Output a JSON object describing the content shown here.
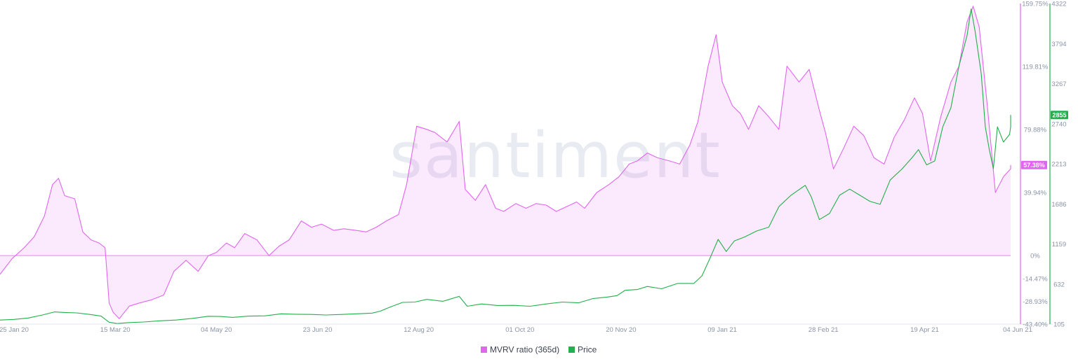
{
  "watermark": "santiment",
  "chart_data": {
    "type": "area",
    "x_dates": [
      "2020-01-25",
      "2020-03-15",
      "2020-05-04",
      "2020-06-23",
      "2020-08-12",
      "2020-10-01",
      "2020-11-20",
      "2021-01-09",
      "2021-02-28",
      "2021-04-19",
      "2021-06-04"
    ],
    "x_tick_labels": [
      "25 Jan 20",
      "15 Mar 20",
      "04 May 20",
      "23 Jun 20",
      "12 Aug 20",
      "01 Oct 20",
      "20 Nov 20",
      "09 Jan 21",
      "28 Feb 21",
      "19 Apr 21",
      "04 Jun 21"
    ],
    "y_left": {
      "ticks": [
        159.75,
        119.81,
        79.88,
        39.94,
        0,
        -14.47,
        -28.93,
        -43.4
      ],
      "tick_labels": [
        "159.75%",
        "119.81%",
        "79.88%",
        "39.94%",
        "0%",
        "-14.47%",
        "-28.93%",
        "-43.40%"
      ],
      "range": [
        -43.4,
        159.75
      ]
    },
    "y_right": {
      "ticks": [
        4322,
        3794,
        3267,
        2740,
        2213,
        1686,
        1159,
        632,
        105
      ],
      "tick_labels": [
        "4322",
        "3794",
        "3267",
        "2740",
        "2213",
        "1686",
        "1159",
        "632",
        "105"
      ],
      "range": [
        105,
        4322
      ]
    },
    "series": [
      {
        "name": "MVRV ratio (365d)",
        "axis": "left",
        "color": "#e066ee",
        "current_label": "57.38%",
        "points": [
          [
            "2020-01-18",
            -12
          ],
          [
            "2020-01-24",
            -2
          ],
          [
            "2020-01-30",
            5
          ],
          [
            "2020-02-04",
            12
          ],
          [
            "2020-02-09",
            25
          ],
          [
            "2020-02-13",
            45
          ],
          [
            "2020-02-16",
            49
          ],
          [
            "2020-02-19",
            38
          ],
          [
            "2020-02-24",
            36
          ],
          [
            "2020-02-28",
            15
          ],
          [
            "2020-03-03",
            10
          ],
          [
            "2020-03-07",
            8
          ],
          [
            "2020-03-10",
            5
          ],
          [
            "2020-03-12",
            -30
          ],
          [
            "2020-03-14",
            -36
          ],
          [
            "2020-03-17",
            -40
          ],
          [
            "2020-03-22",
            -32
          ],
          [
            "2020-03-27",
            -30
          ],
          [
            "2020-04-02",
            -28
          ],
          [
            "2020-04-08",
            -25
          ],
          [
            "2020-04-13",
            -10
          ],
          [
            "2020-04-19",
            -3
          ],
          [
            "2020-04-25",
            -10
          ],
          [
            "2020-04-30",
            0
          ],
          [
            "2020-05-04",
            2
          ],
          [
            "2020-05-09",
            8
          ],
          [
            "2020-05-13",
            5
          ],
          [
            "2020-05-18",
            14
          ],
          [
            "2020-05-24",
            10
          ],
          [
            "2020-05-30",
            0
          ],
          [
            "2020-06-04",
            6
          ],
          [
            "2020-06-09",
            10
          ],
          [
            "2020-06-15",
            22
          ],
          [
            "2020-06-20",
            18
          ],
          [
            "2020-06-25",
            20
          ],
          [
            "2020-07-01",
            16
          ],
          [
            "2020-07-06",
            17
          ],
          [
            "2020-07-12",
            16
          ],
          [
            "2020-07-17",
            15
          ],
          [
            "2020-07-22",
            18
          ],
          [
            "2020-07-27",
            22
          ],
          [
            "2020-08-02",
            26
          ],
          [
            "2020-08-06",
            45
          ],
          [
            "2020-08-11",
            82
          ],
          [
            "2020-08-16",
            80
          ],
          [
            "2020-08-20",
            78
          ],
          [
            "2020-08-26",
            72
          ],
          [
            "2020-09-01",
            85
          ],
          [
            "2020-09-04",
            42
          ],
          [
            "2020-09-09",
            35
          ],
          [
            "2020-09-14",
            45
          ],
          [
            "2020-09-19",
            30
          ],
          [
            "2020-09-23",
            28
          ],
          [
            "2020-09-29",
            33
          ],
          [
            "2020-10-04",
            30
          ],
          [
            "2020-10-09",
            33
          ],
          [
            "2020-10-14",
            32
          ],
          [
            "2020-10-19",
            28
          ],
          [
            "2020-10-24",
            31
          ],
          [
            "2020-10-29",
            34
          ],
          [
            "2020-11-02",
            30
          ],
          [
            "2020-11-08",
            40
          ],
          [
            "2020-11-14",
            45
          ],
          [
            "2020-11-19",
            50
          ],
          [
            "2020-11-24",
            58
          ],
          [
            "2020-11-28",
            60
          ],
          [
            "2020-12-03",
            65
          ],
          [
            "2020-12-08",
            62
          ],
          [
            "2020-12-14",
            60
          ],
          [
            "2020-12-19",
            58
          ],
          [
            "2020-12-24",
            70
          ],
          [
            "2020-12-28",
            85
          ],
          [
            "2021-01-02",
            120
          ],
          [
            "2021-01-06",
            140
          ],
          [
            "2021-01-09",
            110
          ],
          [
            "2021-01-14",
            95
          ],
          [
            "2021-01-18",
            90
          ],
          [
            "2021-01-22",
            80
          ],
          [
            "2021-01-27",
            95
          ],
          [
            "2021-02-01",
            88
          ],
          [
            "2021-02-06",
            80
          ],
          [
            "2021-02-10",
            120
          ],
          [
            "2021-02-16",
            110
          ],
          [
            "2021-02-21",
            118
          ],
          [
            "2021-02-26",
            92
          ],
          [
            "2021-03-01",
            78
          ],
          [
            "2021-03-05",
            55
          ],
          [
            "2021-03-10",
            68
          ],
          [
            "2021-03-15",
            82
          ],
          [
            "2021-03-20",
            76
          ],
          [
            "2021-03-25",
            62
          ],
          [
            "2021-03-30",
            58
          ],
          [
            "2021-04-04",
            75
          ],
          [
            "2021-04-09",
            86
          ],
          [
            "2021-04-14",
            100
          ],
          [
            "2021-04-18",
            90
          ],
          [
            "2021-04-22",
            60
          ],
          [
            "2021-04-27",
            88
          ],
          [
            "2021-05-02",
            110
          ],
          [
            "2021-05-06",
            120
          ],
          [
            "2021-05-10",
            148
          ],
          [
            "2021-05-13",
            158
          ],
          [
            "2021-05-16",
            145
          ],
          [
            "2021-05-20",
            95
          ],
          [
            "2021-05-24",
            40
          ],
          [
            "2021-05-28",
            50
          ],
          [
            "2021-06-01",
            55
          ],
          [
            "2021-06-04",
            57.38
          ]
        ]
      },
      {
        "name": "Price",
        "axis": "right",
        "color": "#21b04b",
        "current_label": "2855",
        "points": [
          [
            "2020-01-18",
            158
          ],
          [
            "2020-01-25",
            167
          ],
          [
            "2020-02-01",
            185
          ],
          [
            "2020-02-08",
            225
          ],
          [
            "2020-02-14",
            265
          ],
          [
            "2020-02-19",
            258
          ],
          [
            "2020-02-25",
            252
          ],
          [
            "2020-03-03",
            230
          ],
          [
            "2020-03-08",
            210
          ],
          [
            "2020-03-12",
            130
          ],
          [
            "2020-03-16",
            112
          ],
          [
            "2020-03-22",
            125
          ],
          [
            "2020-03-29",
            133
          ],
          [
            "2020-04-06",
            148
          ],
          [
            "2020-04-14",
            158
          ],
          [
            "2020-04-22",
            180
          ],
          [
            "2020-04-30",
            208
          ],
          [
            "2020-05-06",
            205
          ],
          [
            "2020-05-12",
            193
          ],
          [
            "2020-05-20",
            210
          ],
          [
            "2020-05-28",
            214
          ],
          [
            "2020-06-05",
            240
          ],
          [
            "2020-06-12",
            235
          ],
          [
            "2020-06-20",
            232
          ],
          [
            "2020-06-27",
            225
          ],
          [
            "2020-07-05",
            232
          ],
          [
            "2020-07-12",
            240
          ],
          [
            "2020-07-20",
            250
          ],
          [
            "2020-07-24",
            275
          ],
          [
            "2020-07-28",
            320
          ],
          [
            "2020-08-04",
            390
          ],
          [
            "2020-08-10",
            395
          ],
          [
            "2020-08-16",
            430
          ],
          [
            "2020-08-24",
            405
          ],
          [
            "2020-09-01",
            470
          ],
          [
            "2020-09-05",
            340
          ],
          [
            "2020-09-12",
            370
          ],
          [
            "2020-09-20",
            350
          ],
          [
            "2020-09-28",
            352
          ],
          [
            "2020-10-06",
            340
          ],
          [
            "2020-10-14",
            370
          ],
          [
            "2020-10-22",
            395
          ],
          [
            "2020-10-30",
            385
          ],
          [
            "2020-11-06",
            440
          ],
          [
            "2020-11-13",
            460
          ],
          [
            "2020-11-18",
            480
          ],
          [
            "2020-11-22",
            550
          ],
          [
            "2020-11-28",
            560
          ],
          [
            "2020-12-03",
            600
          ],
          [
            "2020-12-10",
            570
          ],
          [
            "2020-12-18",
            640
          ],
          [
            "2020-12-26",
            640
          ],
          [
            "2020-12-30",
            740
          ],
          [
            "2021-01-03",
            975
          ],
          [
            "2021-01-07",
            1220
          ],
          [
            "2021-01-11",
            1060
          ],
          [
            "2021-01-15",
            1200
          ],
          [
            "2021-01-20",
            1250
          ],
          [
            "2021-01-26",
            1330
          ],
          [
            "2021-02-01",
            1380
          ],
          [
            "2021-02-06",
            1650
          ],
          [
            "2021-02-12",
            1800
          ],
          [
            "2021-02-19",
            1930
          ],
          [
            "2021-02-22",
            1780
          ],
          [
            "2021-02-26",
            1480
          ],
          [
            "2021-03-03",
            1560
          ],
          [
            "2021-03-08",
            1800
          ],
          [
            "2021-03-13",
            1880
          ],
          [
            "2021-03-18",
            1800
          ],
          [
            "2021-03-23",
            1720
          ],
          [
            "2021-03-28",
            1680
          ],
          [
            "2021-04-02",
            2000
          ],
          [
            "2021-04-08",
            2150
          ],
          [
            "2021-04-13",
            2300
          ],
          [
            "2021-04-16",
            2400
          ],
          [
            "2021-04-20",
            2200
          ],
          [
            "2021-04-24",
            2250
          ],
          [
            "2021-04-28",
            2700
          ],
          [
            "2021-05-02",
            2950
          ],
          [
            "2021-05-06",
            3500
          ],
          [
            "2021-05-10",
            3900
          ],
          [
            "2021-05-12",
            4250
          ],
          [
            "2021-05-14",
            3950
          ],
          [
            "2021-05-17",
            3400
          ],
          [
            "2021-05-19",
            2700
          ],
          [
            "2021-05-21",
            2400
          ],
          [
            "2021-05-23",
            2150
          ],
          [
            "2021-05-25",
            2700
          ],
          [
            "2021-05-28",
            2500
          ],
          [
            "2021-05-31",
            2600
          ],
          [
            "2021-06-02",
            2700
          ],
          [
            "2021-06-04",
            2855
          ]
        ]
      }
    ],
    "legend": {
      "position": "bottom-center",
      "entries": [
        {
          "label": "MVRV ratio (365d)",
          "color": "#e066ee"
        },
        {
          "label": "Price",
          "color": "#21b04b"
        }
      ]
    },
    "grid": false
  }
}
